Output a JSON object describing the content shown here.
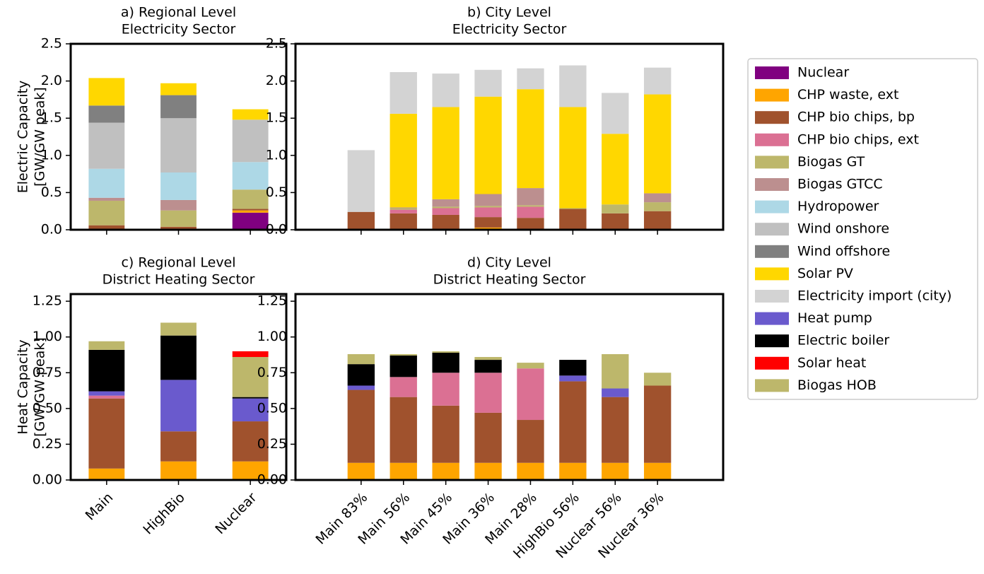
{
  "chart_data": [
    {
      "type": "bar",
      "stacked": true,
      "title": [
        "a) Regional Level",
        "Electricity Sector"
      ],
      "ylabel": [
        "Electric Capacity",
        "[GW/GW peak]"
      ],
      "categories": [
        null,
        null,
        null
      ],
      "ylim": [
        0,
        2.5
      ],
      "yticks": [
        {
          "value": 0,
          "label": "0.0"
        },
        {
          "value": 0.5,
          "label": "0.5"
        },
        {
          "value": 1,
          "label": "1.0"
        },
        {
          "value": 1.5,
          "label": "1.5"
        },
        {
          "value": 2,
          "label": "2.0"
        },
        {
          "value": 2.5,
          "label": "2.5"
        }
      ],
      "series": [
        {
          "name": "Nuclear",
          "color": "#800080",
          "values": [
            0,
            0,
            0.23
          ]
        },
        {
          "name": "CHP waste, ext",
          "color": "#ffa500",
          "values": [
            0.01,
            0.01,
            0.03
          ]
        },
        {
          "name": "CHP bio chips, bp",
          "color": "#a0522d",
          "values": [
            0.05,
            0.03,
            0.02
          ]
        },
        {
          "name": "Biogas GT",
          "color": "#bdb76b",
          "values": [
            0.33,
            0.22,
            0.26
          ]
        },
        {
          "name": "Biogas GTCC",
          "color": "#bc8f8f",
          "values": [
            0.04,
            0.14,
            0
          ]
        },
        {
          "name": "Hydropower",
          "color": "#add8e6",
          "values": [
            0.39,
            0.37,
            0.37
          ]
        },
        {
          "name": "Wind onshore",
          "color": "#c0c0c0",
          "values": [
            0.62,
            0.73,
            0.57
          ]
        },
        {
          "name": "Wind offshore",
          "color": "#808080",
          "values": [
            0.23,
            0.31,
            0
          ]
        },
        {
          "name": "Solar PV",
          "color": "#ffd700",
          "values": [
            0.37,
            0.16,
            0.14
          ]
        }
      ]
    },
    {
      "type": "bar",
      "stacked": true,
      "title": [
        "b) City Level",
        "Electricity Sector"
      ],
      "categories": [
        null,
        null,
        null,
        null,
        null,
        null,
        null,
        null
      ],
      "ylim": [
        0,
        2.5
      ],
      "yticks": [
        {
          "value": 0,
          "label": "0.0"
        },
        {
          "value": 0.5,
          "label": "0.5"
        },
        {
          "value": 1,
          "label": "1.0"
        },
        {
          "value": 1.5,
          "label": "1.5"
        },
        {
          "value": 2,
          "label": "2.0"
        },
        {
          "value": 2.5,
          "label": "2.5"
        }
      ],
      "series": [
        {
          "name": "CHP waste, ext",
          "color": "#ffa500",
          "values": [
            0,
            0.01,
            0.01,
            0.03,
            0.01,
            0.01,
            0.01,
            0.01
          ]
        },
        {
          "name": "CHP bio chips, bp",
          "color": "#a0522d",
          "values": [
            0.24,
            0.21,
            0.19,
            0.14,
            0.15,
            0.27,
            0.21,
            0.24
          ]
        },
        {
          "name": "CHP bio chips, ext",
          "color": "#db7093",
          "values": [
            0,
            0.05,
            0.09,
            0.13,
            0.15,
            0,
            0,
            0
          ]
        },
        {
          "name": "Biogas GT",
          "color": "#bdb76b",
          "values": [
            0,
            0.02,
            0.02,
            0.02,
            0.02,
            0.01,
            0.12,
            0.12
          ]
        },
        {
          "name": "Biogas GTCC",
          "color": "#bc8f8f",
          "values": [
            0,
            0.01,
            0.1,
            0.16,
            0.23,
            0,
            0,
            0.12
          ]
        },
        {
          "name": "Solar PV",
          "color": "#ffd700",
          "values": [
            0,
            1.26,
            1.24,
            1.31,
            1.33,
            1.36,
            0.95,
            1.33
          ]
        },
        {
          "name": "Electricity import (city)",
          "color": "#d3d3d3",
          "values": [
            0.83,
            0.56,
            0.45,
            0.36,
            0.28,
            0.56,
            0.55,
            0.36
          ]
        }
      ]
    },
    {
      "type": "bar",
      "stacked": true,
      "title": [
        "c) Regional Level",
        "District Heating Sector"
      ],
      "ylabel": [
        "Heat Capacity",
        "[GW/GW peak]"
      ],
      "categories": [
        "Main",
        "HighBio",
        "Nuclear"
      ],
      "ylim": [
        0,
        1.3
      ],
      "yticks": [
        {
          "value": 0,
          "label": "0.00"
        },
        {
          "value": 0.25,
          "label": "0.25"
        },
        {
          "value": 0.5,
          "label": "0.50"
        },
        {
          "value": 0.75,
          "label": "0.75"
        },
        {
          "value": 1,
          "label": "1.00"
        },
        {
          "value": 1.25,
          "label": "1.25"
        }
      ],
      "series": [
        {
          "name": "CHP waste, ext",
          "color": "#ffa500",
          "values": [
            0.08,
            0.13,
            0.13
          ]
        },
        {
          "name": "CHP bio chips, bp",
          "color": "#a0522d",
          "values": [
            0.49,
            0.21,
            0.28
          ]
        },
        {
          "name": "CHP bio chips, ext",
          "color": "#db7093",
          "values": [
            0.02,
            0,
            0
          ]
        },
        {
          "name": "Heat pump",
          "color": "#6a5acd",
          "values": [
            0.03,
            0.36,
            0.16
          ]
        },
        {
          "name": "Electric boiler",
          "color": "#000000",
          "values": [
            0.29,
            0.31,
            0.01
          ]
        },
        {
          "name": "Biogas HOB",
          "color": "#bdb76b",
          "values": [
            0.06,
            0.09,
            0.28
          ]
        },
        {
          "name": "Solar heat",
          "color": "#ff0000",
          "values": [
            0,
            0,
            0.04
          ]
        }
      ]
    },
    {
      "type": "bar",
      "stacked": true,
      "title": [
        "d) City Level",
        "District Heating Sector"
      ],
      "categories": [
        "Main 83%",
        "Main 56%",
        "Main 45%",
        "Main 36%",
        "Main 28%",
        "HighBio 56%",
        "Nuclear 56%",
        "Nuclear 36%"
      ],
      "ylim": [
        0,
        1.3
      ],
      "yticks": [
        {
          "value": 0,
          "label": "0.00"
        },
        {
          "value": 0.25,
          "label": "0.25"
        },
        {
          "value": 0.5,
          "label": "0.50"
        },
        {
          "value": 0.75,
          "label": "0.75"
        },
        {
          "value": 1,
          "label": "1.00"
        },
        {
          "value": 1.25,
          "label": "1.25"
        }
      ],
      "series": [
        {
          "name": "CHP waste, ext",
          "color": "#ffa500",
          "values": [
            0.12,
            0.12,
            0.12,
            0.12,
            0.12,
            0.12,
            0.12,
            0.12
          ]
        },
        {
          "name": "CHP bio chips, bp",
          "color": "#a0522d",
          "values": [
            0.51,
            0.46,
            0.4,
            0.35,
            0.3,
            0.57,
            0.46,
            0.54
          ]
        },
        {
          "name": "CHP bio chips, ext",
          "color": "#db7093",
          "values": [
            0,
            0.14,
            0.23,
            0.28,
            0.36,
            0,
            0,
            0
          ]
        },
        {
          "name": "Heat pump",
          "color": "#6a5acd",
          "values": [
            0.03,
            0,
            0,
            0,
            0,
            0.04,
            0.06,
            0
          ]
        },
        {
          "name": "Electric boiler",
          "color": "#000000",
          "values": [
            0.15,
            0.15,
            0.14,
            0.09,
            0,
            0.11,
            0,
            0
          ]
        },
        {
          "name": "Biogas HOB",
          "color": "#bdb76b",
          "values": [
            0.07,
            0.01,
            0.01,
            0.02,
            0.04,
            0,
            0.24,
            0.09
          ]
        }
      ]
    }
  ],
  "legend": [
    {
      "name": "Nuclear",
      "color": "#800080"
    },
    {
      "name": "CHP waste, ext",
      "color": "#ffa500"
    },
    {
      "name": "CHP bio chips, bp",
      "color": "#a0522d"
    },
    {
      "name": "CHP bio chips, ext",
      "color": "#db7093"
    },
    {
      "name": "Biogas GT",
      "color": "#bdb76b"
    },
    {
      "name": "Biogas GTCC",
      "color": "#bc8f8f"
    },
    {
      "name": "Hydropower",
      "color": "#add8e6"
    },
    {
      "name": "Wind onshore",
      "color": "#c0c0c0"
    },
    {
      "name": "Wind offshore",
      "color": "#808080"
    },
    {
      "name": "Solar PV",
      "color": "#ffd700"
    },
    {
      "name": "Electricity import (city)",
      "color": "#d3d3d3"
    },
    {
      "name": "Heat pump",
      "color": "#6a5acd"
    },
    {
      "name": "Electric boiler",
      "color": "#000000"
    },
    {
      "name": "Solar heat",
      "color": "#ff0000"
    },
    {
      "name": "Biogas HOB",
      "color": "#bdb76b"
    }
  ]
}
